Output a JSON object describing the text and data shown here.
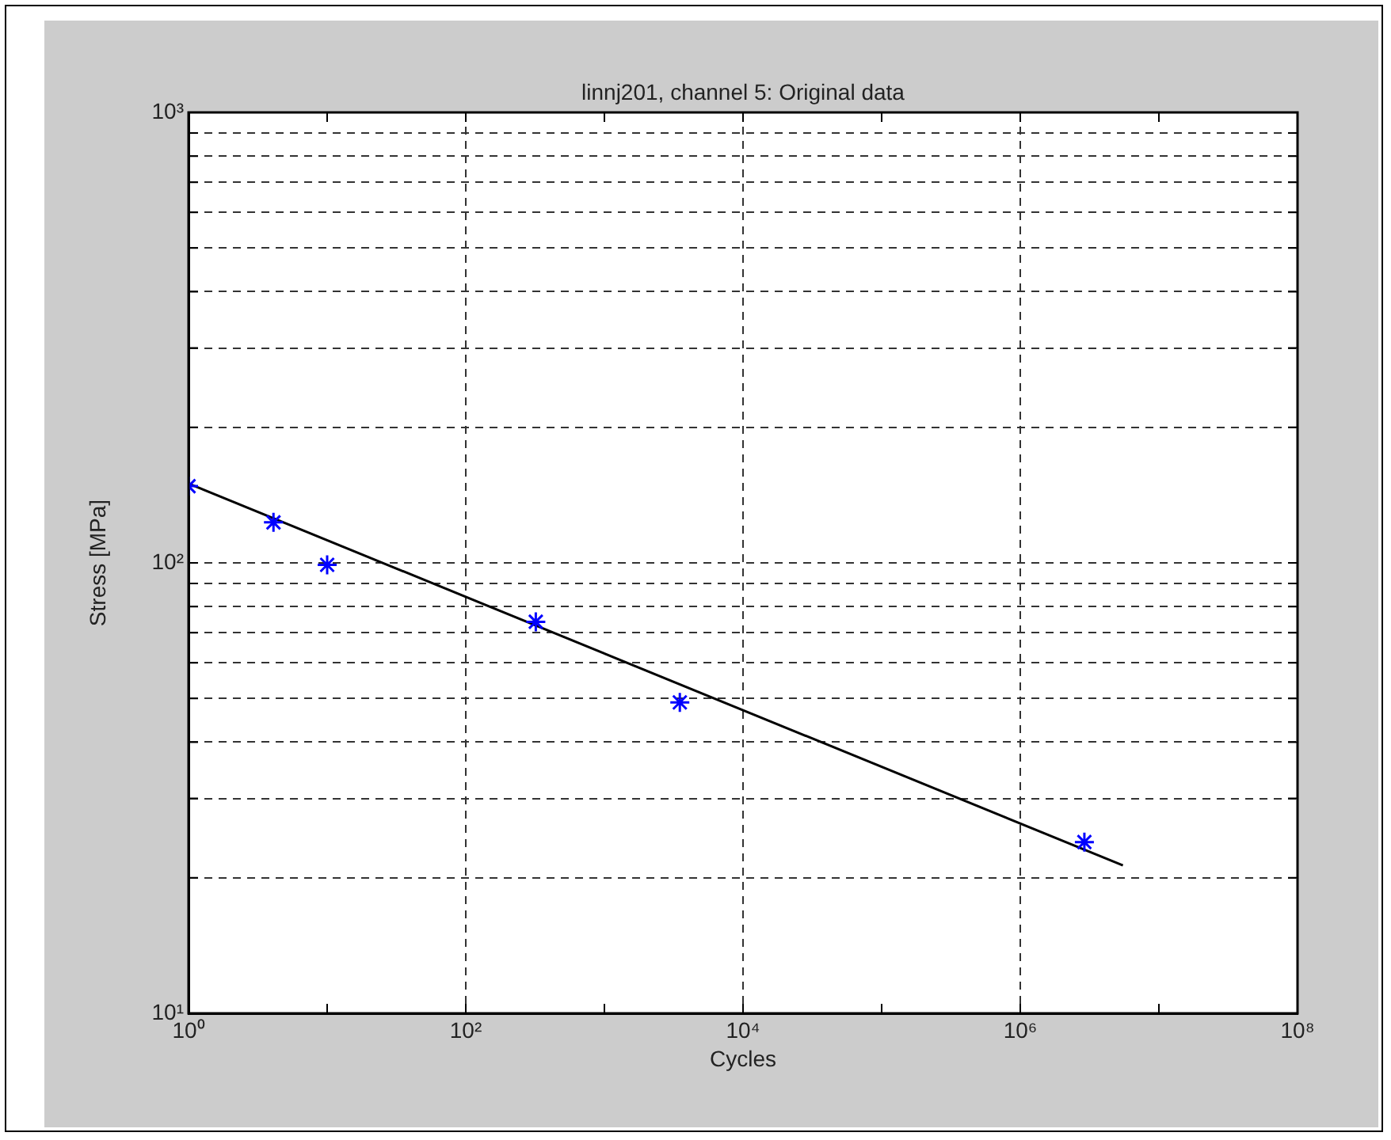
{
  "chart_data": {
    "type": "scatter",
    "title": "linnj201, channel 5: Original data",
    "xlabel": "Cycles",
    "ylabel": "Stress [MPa]",
    "log": "xy",
    "grid": true,
    "legend": false,
    "marker": "cross",
    "xlim": [
      1,
      100000000
    ],
    "ylim": [
      10,
      1000
    ],
    "xticks": [
      {
        "value": 1,
        "label": "10⁰"
      },
      {
        "value": 10,
        "label": null
      },
      {
        "value": 100,
        "label": "10²"
      },
      {
        "value": 1000,
        "label": null
      },
      {
        "value": 10000,
        "label": "10⁴"
      },
      {
        "value": 100000,
        "label": null
      },
      {
        "value": 1000000,
        "label": "10⁶"
      },
      {
        "value": 10000000,
        "label": null
      },
      {
        "value": 100000000,
        "label": "10⁸"
      }
    ],
    "yticks": [
      {
        "value": 10,
        "label": "10¹"
      },
      {
        "value": 20,
        "label": null
      },
      {
        "value": 30,
        "label": null
      },
      {
        "value": 40,
        "label": null
      },
      {
        "value": 50,
        "label": null
      },
      {
        "value": 60,
        "label": null
      },
      {
        "value": 70,
        "label": null
      },
      {
        "value": 80,
        "label": null
      },
      {
        "value": 90,
        "label": null
      },
      {
        "value": 100,
        "label": "10²"
      },
      {
        "value": 200,
        "label": null
      },
      {
        "value": 300,
        "label": null
      },
      {
        "value": 400,
        "label": null
      },
      {
        "value": 500,
        "label": null
      },
      {
        "value": 600,
        "label": null
      },
      {
        "value": 700,
        "label": null
      },
      {
        "value": 800,
        "label": null
      },
      {
        "value": 900,
        "label": null
      },
      {
        "value": 1000,
        "label": "10³"
      }
    ],
    "series": [
      {
        "color": "#0000ff",
        "x": [
          1,
          4.1,
          10,
          320,
          3500,
          2900000
        ],
        "values": [
          148,
          123,
          99,
          74,
          49,
          24
        ]
      },
      {
        "type": "line",
        "marker": "none",
        "line_style": "solid",
        "color": "#000000",
        "x": [
          1,
          5500000
        ],
        "values": [
          150,
          21.3
        ]
      }
    ]
  }
}
